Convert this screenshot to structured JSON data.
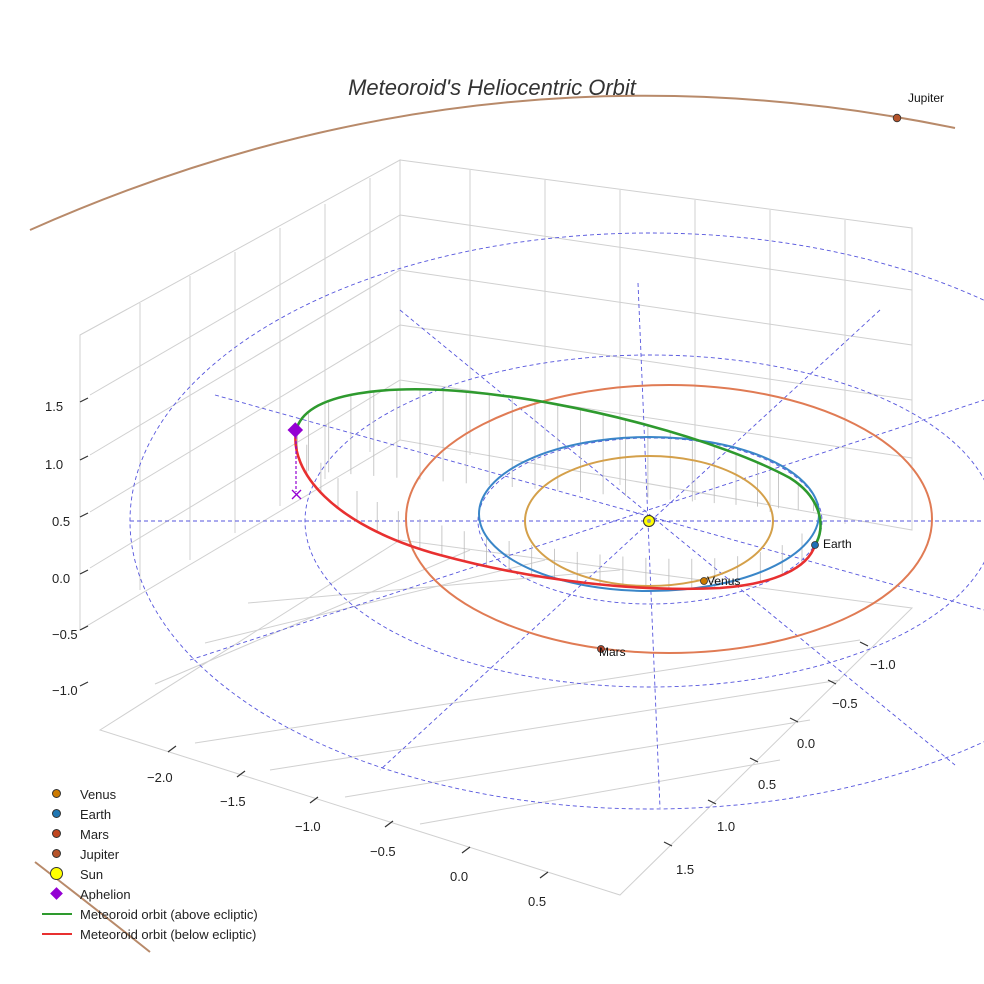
{
  "chart_data": {
    "type": "3d-orbit",
    "title": "Meteoroid's Heliocentric Orbit",
    "x_ticks": [
      "−2.0",
      "−1.5",
      "−1.0",
      "−0.5",
      "0.0",
      "0.5"
    ],
    "y_ticks": [
      "−1.0",
      "−0.5",
      "0.0",
      "0.5",
      "1.0",
      "1.5"
    ],
    "z_ticks": [
      "−1.0",
      "−0.5",
      "0.0",
      "0.5",
      "1.0",
      "1.5"
    ],
    "planets": [
      {
        "name": "Venus",
        "orbit_au": 0.72,
        "color": "#d4a04a",
        "marker": "#cc7a00"
      },
      {
        "name": "Earth",
        "orbit_au": 1.0,
        "color": "#3a86c8",
        "marker": "#1f6fb5"
      },
      {
        "name": "Mars",
        "orbit_au": 1.52,
        "color": "#e07b54",
        "marker": "#b5462a"
      },
      {
        "name": "Jupiter",
        "orbit_au": 5.2,
        "color": "#b88a6a",
        "marker": "#b5532a"
      }
    ],
    "sun": {
      "name": "Sun",
      "color": "#ffff00"
    },
    "aphelion": {
      "name": "Aphelion",
      "color": "#9400d3"
    },
    "meteoroid": {
      "above_label": "Meteoroid orbit (above ecliptic)",
      "below_label": "Meteoroid orbit (below ecliptic)",
      "above_color": "#2e9a2e",
      "below_color": "#e83030"
    },
    "ecliptic_grid_color": "#5555dd"
  },
  "legend": [
    {
      "label": "Venus",
      "kind": "dot",
      "color": "#cc7a00"
    },
    {
      "label": "Earth",
      "kind": "dot",
      "color": "#1f77b4"
    },
    {
      "label": "Mars",
      "kind": "dot",
      "color": "#c0461f"
    },
    {
      "label": "Jupiter",
      "kind": "dot",
      "color": "#b5532a"
    },
    {
      "label": "Sun",
      "kind": "big",
      "color": "#ffff00"
    },
    {
      "label": "Aphelion",
      "kind": "diamond",
      "color": "#9400d3"
    },
    {
      "label": "Meteoroid orbit (above ecliptic)",
      "kind": "line",
      "color": "#2e9a2e"
    },
    {
      "label": "Meteoroid orbit (below ecliptic)",
      "kind": "line",
      "color": "#e83030"
    }
  ]
}
